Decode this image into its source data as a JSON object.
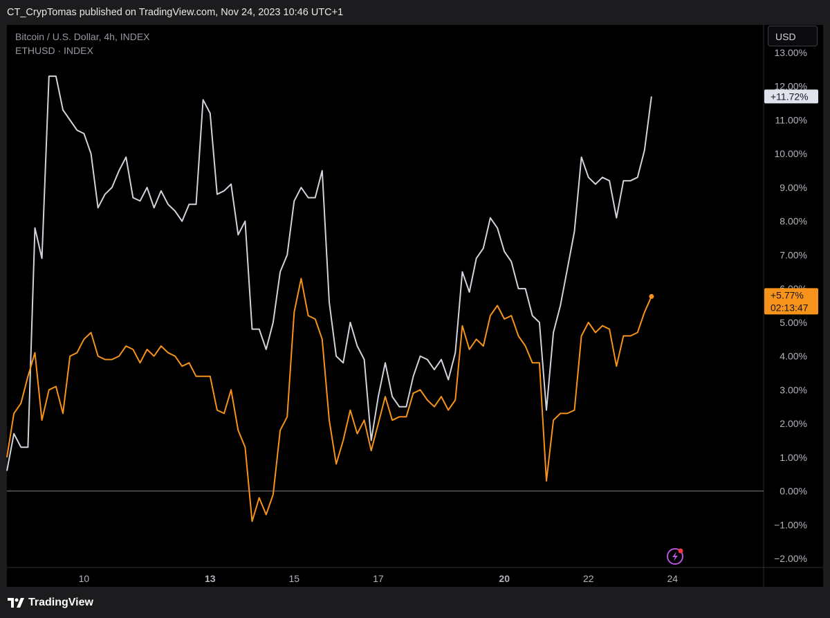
{
  "header": {
    "publish_text": "CT_CrypTomas published on TradingView.com, Nov 24, 2023 10:46 UTC+1"
  },
  "legend": {
    "series1": "Bitcoin / U.S. Dollar, 4h, INDEX",
    "series2": "ETHUSD · INDEX"
  },
  "scale": {
    "currency_button": "USD"
  },
  "footer": {
    "brand": "TradingView"
  },
  "colors": {
    "btc_line": "#d1d4dc",
    "eth_line": "#f7931a",
    "background": "#000000",
    "zero_line": "#787b86"
  },
  "icons": {
    "alert": "lightning-bolt-icon",
    "brand": "tradingview-logo-icon"
  },
  "chart_data": {
    "type": "line",
    "y_unit": "%",
    "ylim": [
      -2.5,
      13.5
    ],
    "y_ticks": [
      13,
      12,
      11,
      10,
      9,
      8,
      7,
      6,
      5,
      4,
      3,
      2,
      1,
      0,
      -1,
      -2
    ],
    "y_tick_labels": [
      "13.00%",
      "12.00%",
      "11.00%",
      "10.00%",
      "9.00%",
      "8.00%",
      "7.00%",
      "6.00%",
      "5.00%",
      "4.00%",
      "3.00%",
      "2.00%",
      "1.00%",
      "0.00%",
      "−1.00%",
      "−2.00%"
    ],
    "x_ticks": [
      {
        "label": "10",
        "index": 11,
        "bold": false
      },
      {
        "label": "13",
        "index": 29,
        "bold": true
      },
      {
        "label": "15",
        "index": 41,
        "bold": false
      },
      {
        "label": "17",
        "index": 53,
        "bold": false
      },
      {
        "label": "20",
        "index": 71,
        "bold": true
      },
      {
        "label": "22",
        "index": 83,
        "bold": false
      },
      {
        "label": "24",
        "index": 95,
        "bold": false
      }
    ],
    "x_range": [
      0,
      108
    ],
    "zero_line": true,
    "series": [
      {
        "name": "Bitcoin / U.S. Dollar, 4h, INDEX",
        "color": "#d1d4dc",
        "last_label": "+11.72%",
        "values": [
          0.6,
          1.7,
          1.3,
          1.3,
          7.8,
          6.9,
          12.3,
          12.3,
          11.3,
          11.0,
          10.7,
          10.6,
          10.0,
          8.4,
          8.8,
          9.0,
          9.5,
          9.9,
          8.7,
          8.6,
          9.0,
          8.4,
          8.9,
          8.5,
          8.3,
          8.0,
          8.5,
          8.5,
          11.6,
          11.2,
          8.8,
          8.9,
          9.1,
          7.6,
          8.0,
          4.8,
          4.8,
          4.2,
          5.0,
          6.5,
          7.0,
          8.6,
          9.0,
          8.7,
          8.7,
          9.5,
          5.6,
          4.0,
          3.8,
          5.0,
          4.3,
          3.9,
          1.5,
          2.8,
          3.8,
          2.8,
          2.5,
          2.5,
          3.4,
          4.0,
          3.9,
          3.6,
          3.9,
          3.3,
          4.1,
          6.5,
          5.9,
          6.9,
          7.2,
          8.1,
          7.8,
          7.1,
          6.8,
          6.0,
          6.0,
          5.2,
          5.0,
          2.4,
          4.7,
          5.5,
          6.6,
          7.7,
          9.9,
          9.3,
          9.1,
          9.3,
          9.2,
          8.1,
          9.2,
          9.2,
          9.3,
          10.1,
          11.7
        ]
      },
      {
        "name": "ETHUSD · INDEX",
        "color": "#f7931a",
        "last_label": "+5.77%",
        "countdown": "02:13:47",
        "values": [
          1.0,
          2.3,
          2.6,
          3.4,
          4.1,
          2.1,
          3.0,
          3.1,
          2.3,
          4.0,
          4.1,
          4.5,
          4.7,
          4.0,
          3.9,
          3.9,
          4.0,
          4.3,
          4.2,
          3.8,
          4.2,
          4.0,
          4.3,
          4.1,
          4.0,
          3.7,
          3.8,
          3.4,
          3.4,
          3.4,
          2.4,
          2.3,
          3.0,
          1.8,
          1.3,
          -0.9,
          -0.2,
          -0.7,
          -0.1,
          1.8,
          2.2,
          5.3,
          6.3,
          5.2,
          5.1,
          4.5,
          2.1,
          0.8,
          1.5,
          2.4,
          1.7,
          2.1,
          1.2,
          2.0,
          2.8,
          2.1,
          2.2,
          2.2,
          2.9,
          3.0,
          2.7,
          2.5,
          2.8,
          2.4,
          2.7,
          4.9,
          4.2,
          4.5,
          4.3,
          5.2,
          5.5,
          5.1,
          5.2,
          4.6,
          4.3,
          3.8,
          3.8,
          0.3,
          2.1,
          2.3,
          2.3,
          2.4,
          4.6,
          5.0,
          4.7,
          4.9,
          4.8,
          3.7,
          4.6,
          4.6,
          4.7,
          5.3,
          5.77
        ]
      }
    ]
  }
}
